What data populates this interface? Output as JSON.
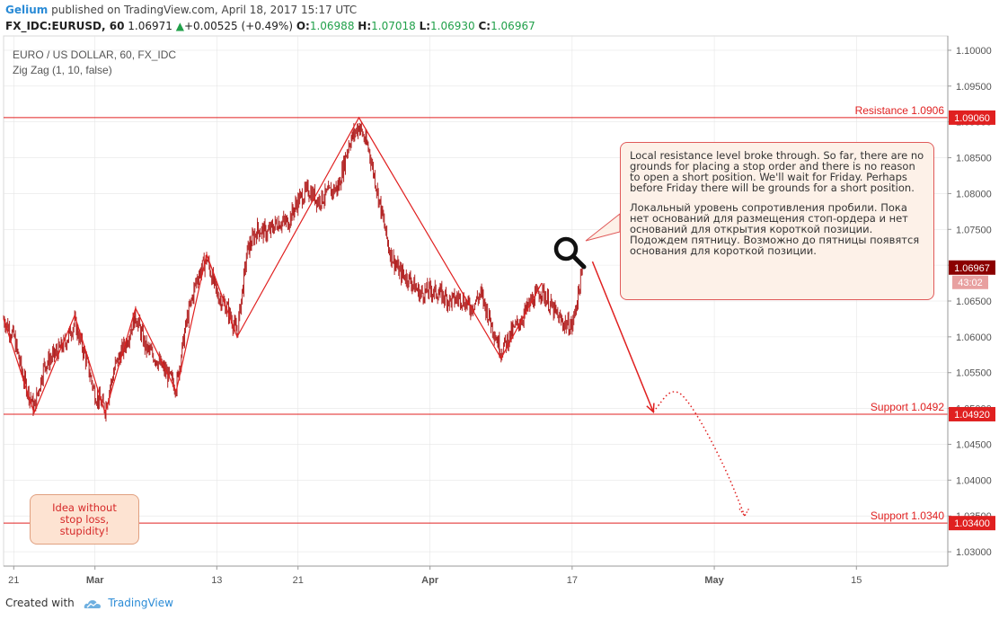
{
  "header": {
    "user": "Gelium",
    "published_text": "published on TradingView.com, April 18, 2017 15:17 UTC",
    "symbol": "FX_IDC:EURUSD, 60",
    "last": "1.06971",
    "change": "+0.00525 (+0.49%)",
    "o_label": "O:",
    "o_value": "1.06988",
    "h_label": "H:",
    "h_value": "1.07018",
    "l_label": "L:",
    "l_value": "1.06930",
    "c_label": "C:",
    "c_value": "1.06967"
  },
  "legend": {
    "title": "EURO / US DOLLAR, 60, FX_IDC",
    "indicator": "Zig Zag (1, 10, false)"
  },
  "notes": {
    "main_en": "Local resistance level broke through. So far, there are no grounds for placing a stop order and there is no reason to open a short position. We'll wait for Friday. Perhaps before Friday there will be grounds for a short position.",
    "main_ru": "Локальный уровень сопротивления пробили. Пока нет оснований для размещения стоп-ордера и нет оснований для открытия короткой позиции. Подождем пятницу. Возможно до пятницы появятся основания для короткой позиции.",
    "idea": "Idea without\nstop loss,\nstupidity!"
  },
  "footer": {
    "created_with": "Created with",
    "brand": "TradingView"
  },
  "colors": {
    "candles": "#b22222",
    "levels": "#e02020",
    "zigzag": "#e02020",
    "price_tag": "#8b0000",
    "grid": "#e6e6e6",
    "axis_text": "#555555"
  },
  "chart_data": {
    "type": "line",
    "title": "EURO / US DOLLAR, 60, FX_IDC",
    "ylim": [
      1.028,
      1.102
    ],
    "y_ticks": [
      "1.10000",
      "1.09500",
      "1.09000",
      "1.08500",
      "1.08000",
      "1.07500",
      "1.07000",
      "1.06500",
      "1.06000",
      "1.05500",
      "1.05000",
      "1.04500",
      "1.04000",
      "1.03500",
      "1.03000"
    ],
    "y_tick_values": [
      1.1,
      1.095,
      1.09,
      1.085,
      1.08,
      1.075,
      1.07,
      1.065,
      1.06,
      1.055,
      1.05,
      1.045,
      1.04,
      1.035,
      1.03
    ],
    "x_domain": [
      "2017-02-20",
      "2017-05-24"
    ],
    "x_ticks": [
      {
        "date": "2017-02-21",
        "label": "21",
        "bold": false
      },
      {
        "date": "2017-03-01",
        "label": "Mar",
        "bold": true
      },
      {
        "date": "2017-03-13",
        "label": "13",
        "bold": false
      },
      {
        "date": "2017-03-21",
        "label": "21",
        "bold": false
      },
      {
        "date": "2017-04-03",
        "label": "Apr",
        "bold": true
      },
      {
        "date": "2017-04-17",
        "label": "17",
        "bold": false
      },
      {
        "date": "2017-05-01",
        "label": "May",
        "bold": true
      },
      {
        "date": "2017-05-15",
        "label": "15",
        "bold": false
      }
    ],
    "series": [
      {
        "type": "zigzag",
        "points": [
          [
            "2017-02-20",
            1.0625
          ],
          [
            "2017-02-23",
            1.0494
          ],
          [
            "2017-02-27",
            1.063
          ],
          [
            "2017-03-02",
            1.0494
          ],
          [
            "2017-03-05",
            1.064
          ],
          [
            "2017-03-09",
            1.0524
          ],
          [
            "2017-03-12",
            1.0715
          ],
          [
            "2017-03-15",
            1.06
          ],
          [
            "2017-03-27",
            1.0906
          ],
          [
            "2017-04-10",
            1.057
          ],
          [
            "2017-04-14",
            1.0675
          ]
        ]
      }
    ],
    "price_anchors": [
      [
        "2017-02-20",
        1.0625
      ],
      [
        "2017-02-21",
        1.06
      ],
      [
        "2017-02-22",
        1.054
      ],
      [
        "2017-02-23",
        1.05
      ],
      [
        "2017-02-24",
        1.056
      ],
      [
        "2017-02-25",
        1.0575
      ],
      [
        "2017-02-26",
        1.059
      ],
      [
        "2017-02-27",
        1.062
      ],
      [
        "2017-02-28",
        1.0575
      ],
      [
        "2017-03-01",
        1.052
      ],
      [
        "2017-03-02",
        1.05
      ],
      [
        "2017-03-03",
        1.056
      ],
      [
        "2017-03-04",
        1.059
      ],
      [
        "2017-03-05",
        1.063
      ],
      [
        "2017-03-06",
        1.0585
      ],
      [
        "2017-03-07",
        1.057
      ],
      [
        "2017-03-08",
        1.055
      ],
      [
        "2017-03-09",
        1.053
      ],
      [
        "2017-03-10",
        1.062
      ],
      [
        "2017-03-11",
        1.068
      ],
      [
        "2017-03-12",
        1.071
      ],
      [
        "2017-03-13",
        1.066
      ],
      [
        "2017-03-14",
        1.064
      ],
      [
        "2017-03-15",
        1.0605
      ],
      [
        "2017-03-16",
        1.072
      ],
      [
        "2017-03-17",
        1.075
      ],
      [
        "2017-03-18",
        1.0745
      ],
      [
        "2017-03-19",
        1.076
      ],
      [
        "2017-03-20",
        1.076
      ],
      [
        "2017-03-21",
        1.079
      ],
      [
        "2017-03-22",
        1.0805
      ],
      [
        "2017-03-23",
        1.079
      ],
      [
        "2017-03-24",
        1.08
      ],
      [
        "2017-03-25",
        1.081
      ],
      [
        "2017-03-26",
        1.087
      ],
      [
        "2017-03-27",
        1.0895
      ],
      [
        "2017-03-28",
        1.086
      ],
      [
        "2017-03-29",
        1.079
      ],
      [
        "2017-03-30",
        1.072
      ],
      [
        "2017-03-31",
        1.069
      ],
      [
        "2017-04-01",
        1.068
      ],
      [
        "2017-04-02",
        1.066
      ],
      [
        "2017-04-03",
        1.0665
      ],
      [
        "2017-04-04",
        1.066
      ],
      [
        "2017-04-05",
        1.065
      ],
      [
        "2017-04-06",
        1.0655
      ],
      [
        "2017-04-07",
        1.064
      ],
      [
        "2017-04-08",
        1.066
      ],
      [
        "2017-04-09",
        1.062
      ],
      [
        "2017-04-10",
        1.058
      ],
      [
        "2017-04-11",
        1.0605
      ],
      [
        "2017-04-12",
        1.0625
      ],
      [
        "2017-04-13",
        1.065
      ],
      [
        "2017-04-14",
        1.0665
      ],
      [
        "2017-04-15",
        1.064
      ],
      [
        "2017-04-16",
        1.062
      ],
      [
        "2017-04-17",
        1.0615
      ],
      [
        "2017-04-18",
        1.069
      ]
    ],
    "levels": [
      {
        "label": "Resistance 1.0906",
        "tag": "1.09060",
        "value": 1.0906
      },
      {
        "label": "Support 1.0492",
        "tag": "1.04920",
        "value": 1.0492
      },
      {
        "label": "Support 1.0340",
        "tag": "1.03400",
        "value": 1.034
      }
    ],
    "current": {
      "tag": "1.06967",
      "value": 1.06967,
      "countdown": "43:02"
    },
    "arrows": {
      "solid": {
        "from": [
          "2017-04-19",
          1.0705
        ],
        "to": [
          "2017-04-25",
          1.0495
        ]
      },
      "dotted": [
        [
          "2017-04-25",
          1.0495
        ],
        [
          "2017-04-27",
          1.0532
        ],
        [
          "2017-04-29",
          1.05
        ],
        [
          "2017-05-02",
          1.042
        ],
        [
          "2017-05-04",
          1.035
        ]
      ]
    }
  }
}
